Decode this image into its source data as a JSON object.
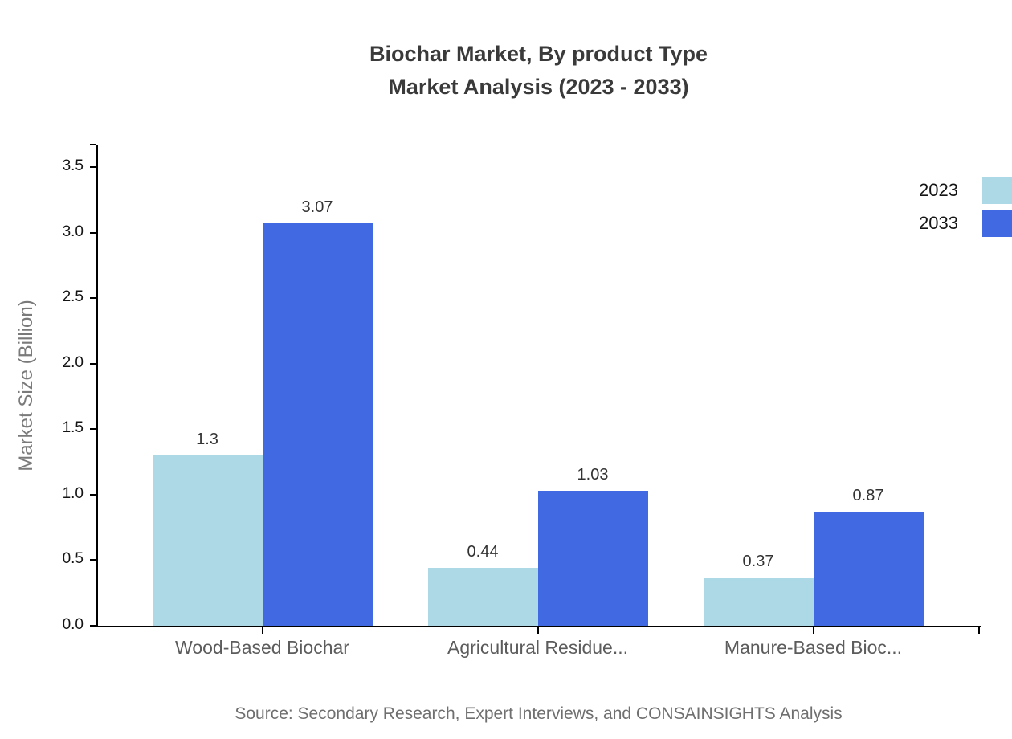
{
  "title": {
    "line1": "Biochar Market, By product Type",
    "line2": "Market Analysis (2023 - 2033)"
  },
  "source": "Source: Secondary Research, Expert Interviews, and CONSAINSIGHTS Analysis",
  "legend": [
    {
      "label": "2023",
      "color": "#ADD8E6"
    },
    {
      "label": "2033",
      "color": "#4169E1"
    }
  ],
  "chart_data": {
    "type": "bar",
    "title": "Biochar Market, By product Type Market Analysis (2023 - 2033)",
    "categories": [
      "Wood-Based Biochar",
      "Agricultural Residue...",
      "Manure-Based Bioc..."
    ],
    "series": [
      {
        "name": "2023",
        "color": "#ADD8E6",
        "values": [
          1.3,
          0.44,
          0.37
        ],
        "labels": [
          "1.3",
          "0.44",
          "0.37"
        ]
      },
      {
        "name": "2033",
        "color": "#4169E1",
        "values": [
          3.07,
          1.03,
          0.87
        ],
        "labels": [
          "3.07",
          "1.03",
          "0.87"
        ]
      }
    ],
    "xlabel": "",
    "ylabel": "Market Size (Billion)",
    "ylim": [
      0,
      3.67
    ],
    "yticks": [
      0.0,
      0.5,
      1.0,
      1.5,
      2.0,
      2.5,
      3.0,
      3.5
    ],
    "ytick_labels": [
      "0.0",
      "0.5",
      "1.0",
      "1.5",
      "2.0",
      "2.5",
      "3.0",
      "3.5"
    ],
    "grid": false,
    "legend_position": "top-right"
  },
  "colors": {
    "background": "#ffffff",
    "title_text": "#3a3a3a",
    "axis_line": "#000000",
    "ytick_label": "#141414",
    "category_label": "#5c5c5c",
    "value_label": "#333333",
    "ylabel_text": "#7a7a7a",
    "source_text": "#6f6f6f",
    "series_2023": "#ADD8E6",
    "series_2033": "#4169E1"
  }
}
